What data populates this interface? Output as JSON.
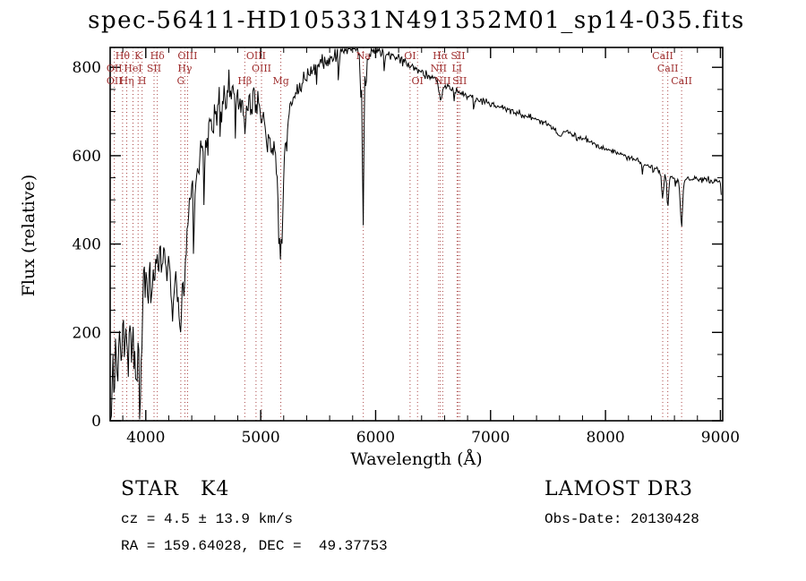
{
  "title": "spec-56411-HD105331N491352M01_sp14-035.fits",
  "annotations": {
    "class_label": "STAR   K4",
    "survey": "LAMOST DR3",
    "cz": "cz = 4.5 ± 13.9 km/s",
    "obs_date": "Obs-Date: 20130428",
    "coords": "RA = 159.64028, DEC =  49.37753"
  },
  "chart_data": {
    "type": "line",
    "title": "spec-56411-HD105331N491352M01_sp14-035.fits",
    "xlabel": "Wavelength (Å)",
    "ylabel": "Flux (relative)",
    "xlim": [
      3690,
      9020
    ],
    "ylim": [
      0,
      845
    ],
    "xticks": [
      4000,
      5000,
      6000,
      7000,
      8000,
      9000
    ],
    "yticks": [
      0,
      200,
      400,
      600,
      800
    ],
    "x_minor_step": 200,
    "y_minor_step": 50,
    "grid": false,
    "line_color": "#000000",
    "marker_color": "#a03030",
    "spectral_lines": [
      3727,
      3798,
      3835,
      3889,
      3933,
      3968,
      4072,
      4101,
      4305,
      4340,
      4363,
      4861,
      4959,
      5007,
      5175,
      5893,
      6300,
      6364,
      6548,
      6563,
      6583,
      6708,
      6717,
      6731,
      8498,
      8542,
      8662
    ],
    "line_labels": [
      {
        "text": "Hθ",
        "wavelength": 3798,
        "row": 1
      },
      {
        "text": "K",
        "wavelength": 3933,
        "row": 1
      },
      {
        "text": "Hδ",
        "wavelength": 4101,
        "row": 1
      },
      {
        "text": "OIII",
        "wavelength": 4363,
        "row": 1
      },
      {
        "text": "OIII",
        "wavelength": 4959,
        "row": 1
      },
      {
        "text": "Na",
        "wavelength": 5893,
        "row": 1
      },
      {
        "text": "OI",
        "wavelength": 6300,
        "row": 1
      },
      {
        "text": "Hα",
        "wavelength": 6563,
        "row": 1
      },
      {
        "text": "SII",
        "wavelength": 6717,
        "row": 1
      },
      {
        "text": "CaII",
        "wavelength": 8498,
        "row": 1
      },
      {
        "text": "OII",
        "wavelength": 3727,
        "row": 2
      },
      {
        "text": "HeI",
        "wavelength": 3889,
        "row": 2
      },
      {
        "text": "SII",
        "wavelength": 4072,
        "row": 2
      },
      {
        "text": "Hγ",
        "wavelength": 4340,
        "row": 2
      },
      {
        "text": "OIII",
        "wavelength": 5007,
        "row": 2
      },
      {
        "text": "NII",
        "wavelength": 6548,
        "row": 2
      },
      {
        "text": "LI",
        "wavelength": 6708,
        "row": 2
      },
      {
        "text": "CaII",
        "wavelength": 8542,
        "row": 2
      },
      {
        "text": "OII",
        "wavelength": 3727,
        "row": 3
      },
      {
        "text": "Hη",
        "wavelength": 3835,
        "row": 3
      },
      {
        "text": "H",
        "wavelength": 3968,
        "row": 3
      },
      {
        "text": "G",
        "wavelength": 4305,
        "row": 3
      },
      {
        "text": "Hβ",
        "wavelength": 4861,
        "row": 3
      },
      {
        "text": "Mg",
        "wavelength": 5175,
        "row": 3
      },
      {
        "text": "OI",
        "wavelength": 6364,
        "row": 3
      },
      {
        "text": "NII",
        "wavelength": 6583,
        "row": 3
      },
      {
        "text": "SII",
        "wavelength": 6731,
        "row": 3
      },
      {
        "text": "CaII",
        "wavelength": 8662,
        "row": 3
      }
    ],
    "spectrum_anchors": [
      [
        3700,
        8
      ],
      [
        3710,
        120
      ],
      [
        3725,
        60
      ],
      [
        3740,
        170
      ],
      [
        3755,
        90
      ],
      [
        3770,
        190
      ],
      [
        3785,
        130
      ],
      [
        3800,
        210
      ],
      [
        3815,
        140
      ],
      [
        3830,
        230
      ],
      [
        3845,
        120
      ],
      [
        3860,
        200
      ],
      [
        3875,
        150
      ],
      [
        3890,
        210
      ],
      [
        3905,
        130
      ],
      [
        3920,
        95
      ],
      [
        3935,
        150
      ],
      [
        3950,
        110
      ],
      [
        3965,
        200
      ],
      [
        3980,
        320
      ],
      [
        4000,
        390
      ],
      [
        4015,
        300
      ],
      [
        4030,
        360
      ],
      [
        4045,
        280
      ],
      [
        4060,
        350
      ],
      [
        4075,
        300
      ],
      [
        4090,
        370
      ],
      [
        4105,
        310
      ],
      [
        4120,
        390
      ],
      [
        4140,
        340
      ],
      [
        4160,
        395
      ],
      [
        4180,
        330
      ],
      [
        4200,
        370
      ],
      [
        4215,
        300
      ],
      [
        4230,
        235
      ],
      [
        4245,
        290
      ],
      [
        4260,
        330
      ],
      [
        4275,
        280
      ],
      [
        4290,
        240
      ],
      [
        4305,
        260
      ],
      [
        4320,
        330
      ],
      [
        4335,
        290
      ],
      [
        4350,
        380
      ],
      [
        4365,
        430
      ],
      [
        4380,
        480
      ],
      [
        4400,
        545
      ],
      [
        4420,
        490
      ],
      [
        4440,
        590
      ],
      [
        4460,
        550
      ],
      [
        4480,
        630
      ],
      [
        4500,
        590
      ],
      [
        4520,
        660
      ],
      [
        4540,
        615
      ],
      [
        4560,
        690
      ],
      [
        4580,
        645
      ],
      [
        4600,
        715
      ],
      [
        4620,
        675
      ],
      [
        4640,
        735
      ],
      [
        4660,
        700
      ],
      [
        4680,
        755
      ],
      [
        4700,
        725
      ],
      [
        4720,
        765
      ],
      [
        4740,
        735
      ],
      [
        4760,
        775
      ],
      [
        4780,
        730
      ],
      [
        4800,
        755
      ],
      [
        4820,
        700
      ],
      [
        4840,
        725
      ],
      [
        4860,
        645
      ],
      [
        4880,
        705
      ],
      [
        4900,
        735
      ],
      [
        4920,
        695
      ],
      [
        4940,
        740
      ],
      [
        4960,
        705
      ],
      [
        4980,
        725
      ],
      [
        5000,
        685
      ],
      [
        5020,
        705
      ],
      [
        5040,
        655
      ],
      [
        5060,
        610
      ],
      [
        5080,
        640
      ],
      [
        5100,
        590
      ],
      [
        5120,
        625
      ],
      [
        5140,
        565
      ],
      [
        5160,
        470
      ],
      [
        5172,
        385
      ],
      [
        5185,
        460
      ],
      [
        5200,
        560
      ],
      [
        5220,
        645
      ],
      [
        5240,
        685
      ],
      [
        5260,
        705
      ],
      [
        5280,
        725
      ],
      [
        5300,
        740
      ],
      [
        5350,
        765
      ],
      [
        5400,
        785
      ],
      [
        5450,
        795
      ],
      [
        5500,
        805
      ],
      [
        5550,
        812
      ],
      [
        5600,
        820
      ],
      [
        5650,
        828
      ],
      [
        5700,
        836
      ],
      [
        5750,
        845
      ],
      [
        5800,
        850
      ],
      [
        5850,
        840
      ],
      [
        5878,
        800
      ],
      [
        5891,
        432
      ],
      [
        5904,
        775
      ],
      [
        5930,
        820
      ],
      [
        5960,
        835
      ],
      [
        6000,
        842
      ],
      [
        6050,
        832
      ],
      [
        6100,
        836
      ],
      [
        6150,
        826
      ],
      [
        6200,
        820
      ],
      [
        6250,
        815
      ],
      [
        6300,
        802
      ],
      [
        6350,
        796
      ],
      [
        6400,
        790
      ],
      [
        6450,
        784
      ],
      [
        6500,
        778
      ],
      [
        6540,
        765
      ],
      [
        6563,
        722
      ],
      [
        6585,
        752
      ],
      [
        6620,
        758
      ],
      [
        6660,
        753
      ],
      [
        6700,
        748
      ],
      [
        6750,
        742
      ],
      [
        6800,
        737
      ],
      [
        6850,
        732
      ],
      [
        6900,
        727
      ],
      [
        6950,
        722
      ],
      [
        7000,
        717
      ],
      [
        7050,
        712
      ],
      [
        7100,
        708
      ],
      [
        7150,
        704
      ],
      [
        7200,
        700
      ],
      [
        7250,
        696
      ],
      [
        7300,
        691
      ],
      [
        7350,
        687
      ],
      [
        7400,
        682
      ],
      [
        7450,
        677
      ],
      [
        7500,
        671
      ],
      [
        7550,
        662
      ],
      [
        7600,
        641
      ],
      [
        7640,
        655
      ],
      [
        7700,
        650
      ],
      [
        7750,
        645
      ],
      [
        7800,
        640
      ],
      [
        7850,
        634
      ],
      [
        7900,
        629
      ],
      [
        7950,
        621
      ],
      [
        8000,
        616
      ],
      [
        8050,
        611
      ],
      [
        8100,
        606
      ],
      [
        8150,
        601
      ],
      [
        8200,
        596
      ],
      [
        8250,
        591
      ],
      [
        8300,
        586
      ],
      [
        8350,
        581
      ],
      [
        8400,
        576
      ],
      [
        8450,
        571
      ],
      [
        8480,
        560
      ],
      [
        8498,
        498
      ],
      [
        8515,
        556
      ],
      [
        8530,
        548
      ],
      [
        8542,
        468
      ],
      [
        8558,
        552
      ],
      [
        8590,
        550
      ],
      [
        8620,
        546
      ],
      [
        8640,
        540
      ],
      [
        8662,
        428
      ],
      [
        8680,
        540
      ],
      [
        8720,
        548
      ],
      [
        8760,
        545
      ],
      [
        8800,
        549
      ],
      [
        8840,
        544
      ],
      [
        8880,
        548
      ],
      [
        8920,
        543
      ],
      [
        8960,
        541
      ],
      [
        9000,
        543
      ],
      [
        9012,
        488
      ]
    ],
    "noise": {
      "seed": 20130428,
      "step": 7,
      "amp": [
        [
          3690,
          60
        ],
        [
          4250,
          52
        ],
        [
          4500,
          40
        ],
        [
          4900,
          36
        ],
        [
          5200,
          28
        ],
        [
          5500,
          22
        ],
        [
          5900,
          17
        ],
        [
          6400,
          14
        ],
        [
          6800,
          11
        ],
        [
          7400,
          9
        ],
        [
          8400,
          8
        ],
        [
          9020,
          8
        ]
      ],
      "spike_prob": [
        [
          3690,
          0.1
        ],
        [
          4300,
          0.09
        ],
        [
          5000,
          0.06
        ],
        [
          5600,
          0.04
        ],
        [
          6500,
          0.03
        ],
        [
          7200,
          0.02
        ],
        [
          8300,
          0.02
        ],
        [
          9020,
          0.02
        ]
      ],
      "spike_depth": [
        [
          3690,
          120
        ],
        [
          4500,
          110
        ],
        [
          5200,
          80
        ],
        [
          6000,
          60
        ],
        [
          6800,
          40
        ],
        [
          7600,
          30
        ],
        [
          9020,
          28
        ]
      ]
    }
  }
}
